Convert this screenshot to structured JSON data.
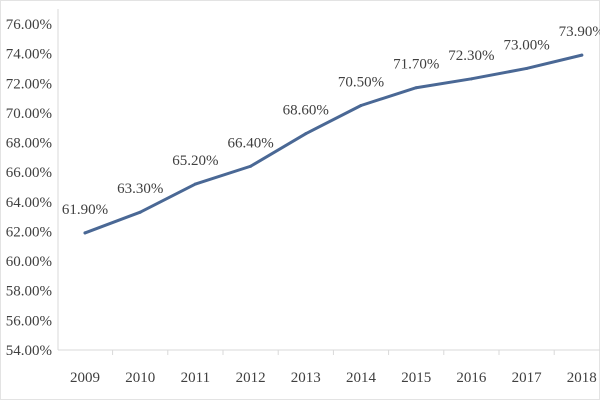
{
  "chart_data": {
    "type": "line",
    "title": "",
    "xlabel": "",
    "ylabel": "",
    "categories": [
      "2009",
      "2010",
      "2011",
      "2012",
      "2013",
      "2014",
      "2015",
      "2016",
      "2017",
      "2018"
    ],
    "series": [
      {
        "values": [
          61.9,
          63.3,
          65.2,
          66.4,
          68.6,
          70.5,
          71.7,
          72.3,
          73.0,
          73.9
        ],
        "color": "#4a6895"
      }
    ],
    "data_labels": [
      "61.90%",
      "63.30%",
      "65.20%",
      "66.40%",
      "68.60%",
      "70.50%",
      "71.70%",
      "72.30%",
      "73.00%",
      "73.90%"
    ],
    "y_ticks": [
      54,
      56,
      58,
      60,
      62,
      64,
      66,
      68,
      70,
      72,
      74,
      76
    ],
    "y_tick_labels": [
      "54.00%",
      "56.00%",
      "58.00%",
      "60.00%",
      "62.00%",
      "64.00%",
      "66.00%",
      "68.00%",
      "70.00%",
      "72.00%",
      "74.00%",
      "76.00%"
    ],
    "ylim": [
      54,
      76
    ],
    "grid": false,
    "legend": "none",
    "axis_color": "#d9d9d9",
    "text_color": "#404040"
  }
}
